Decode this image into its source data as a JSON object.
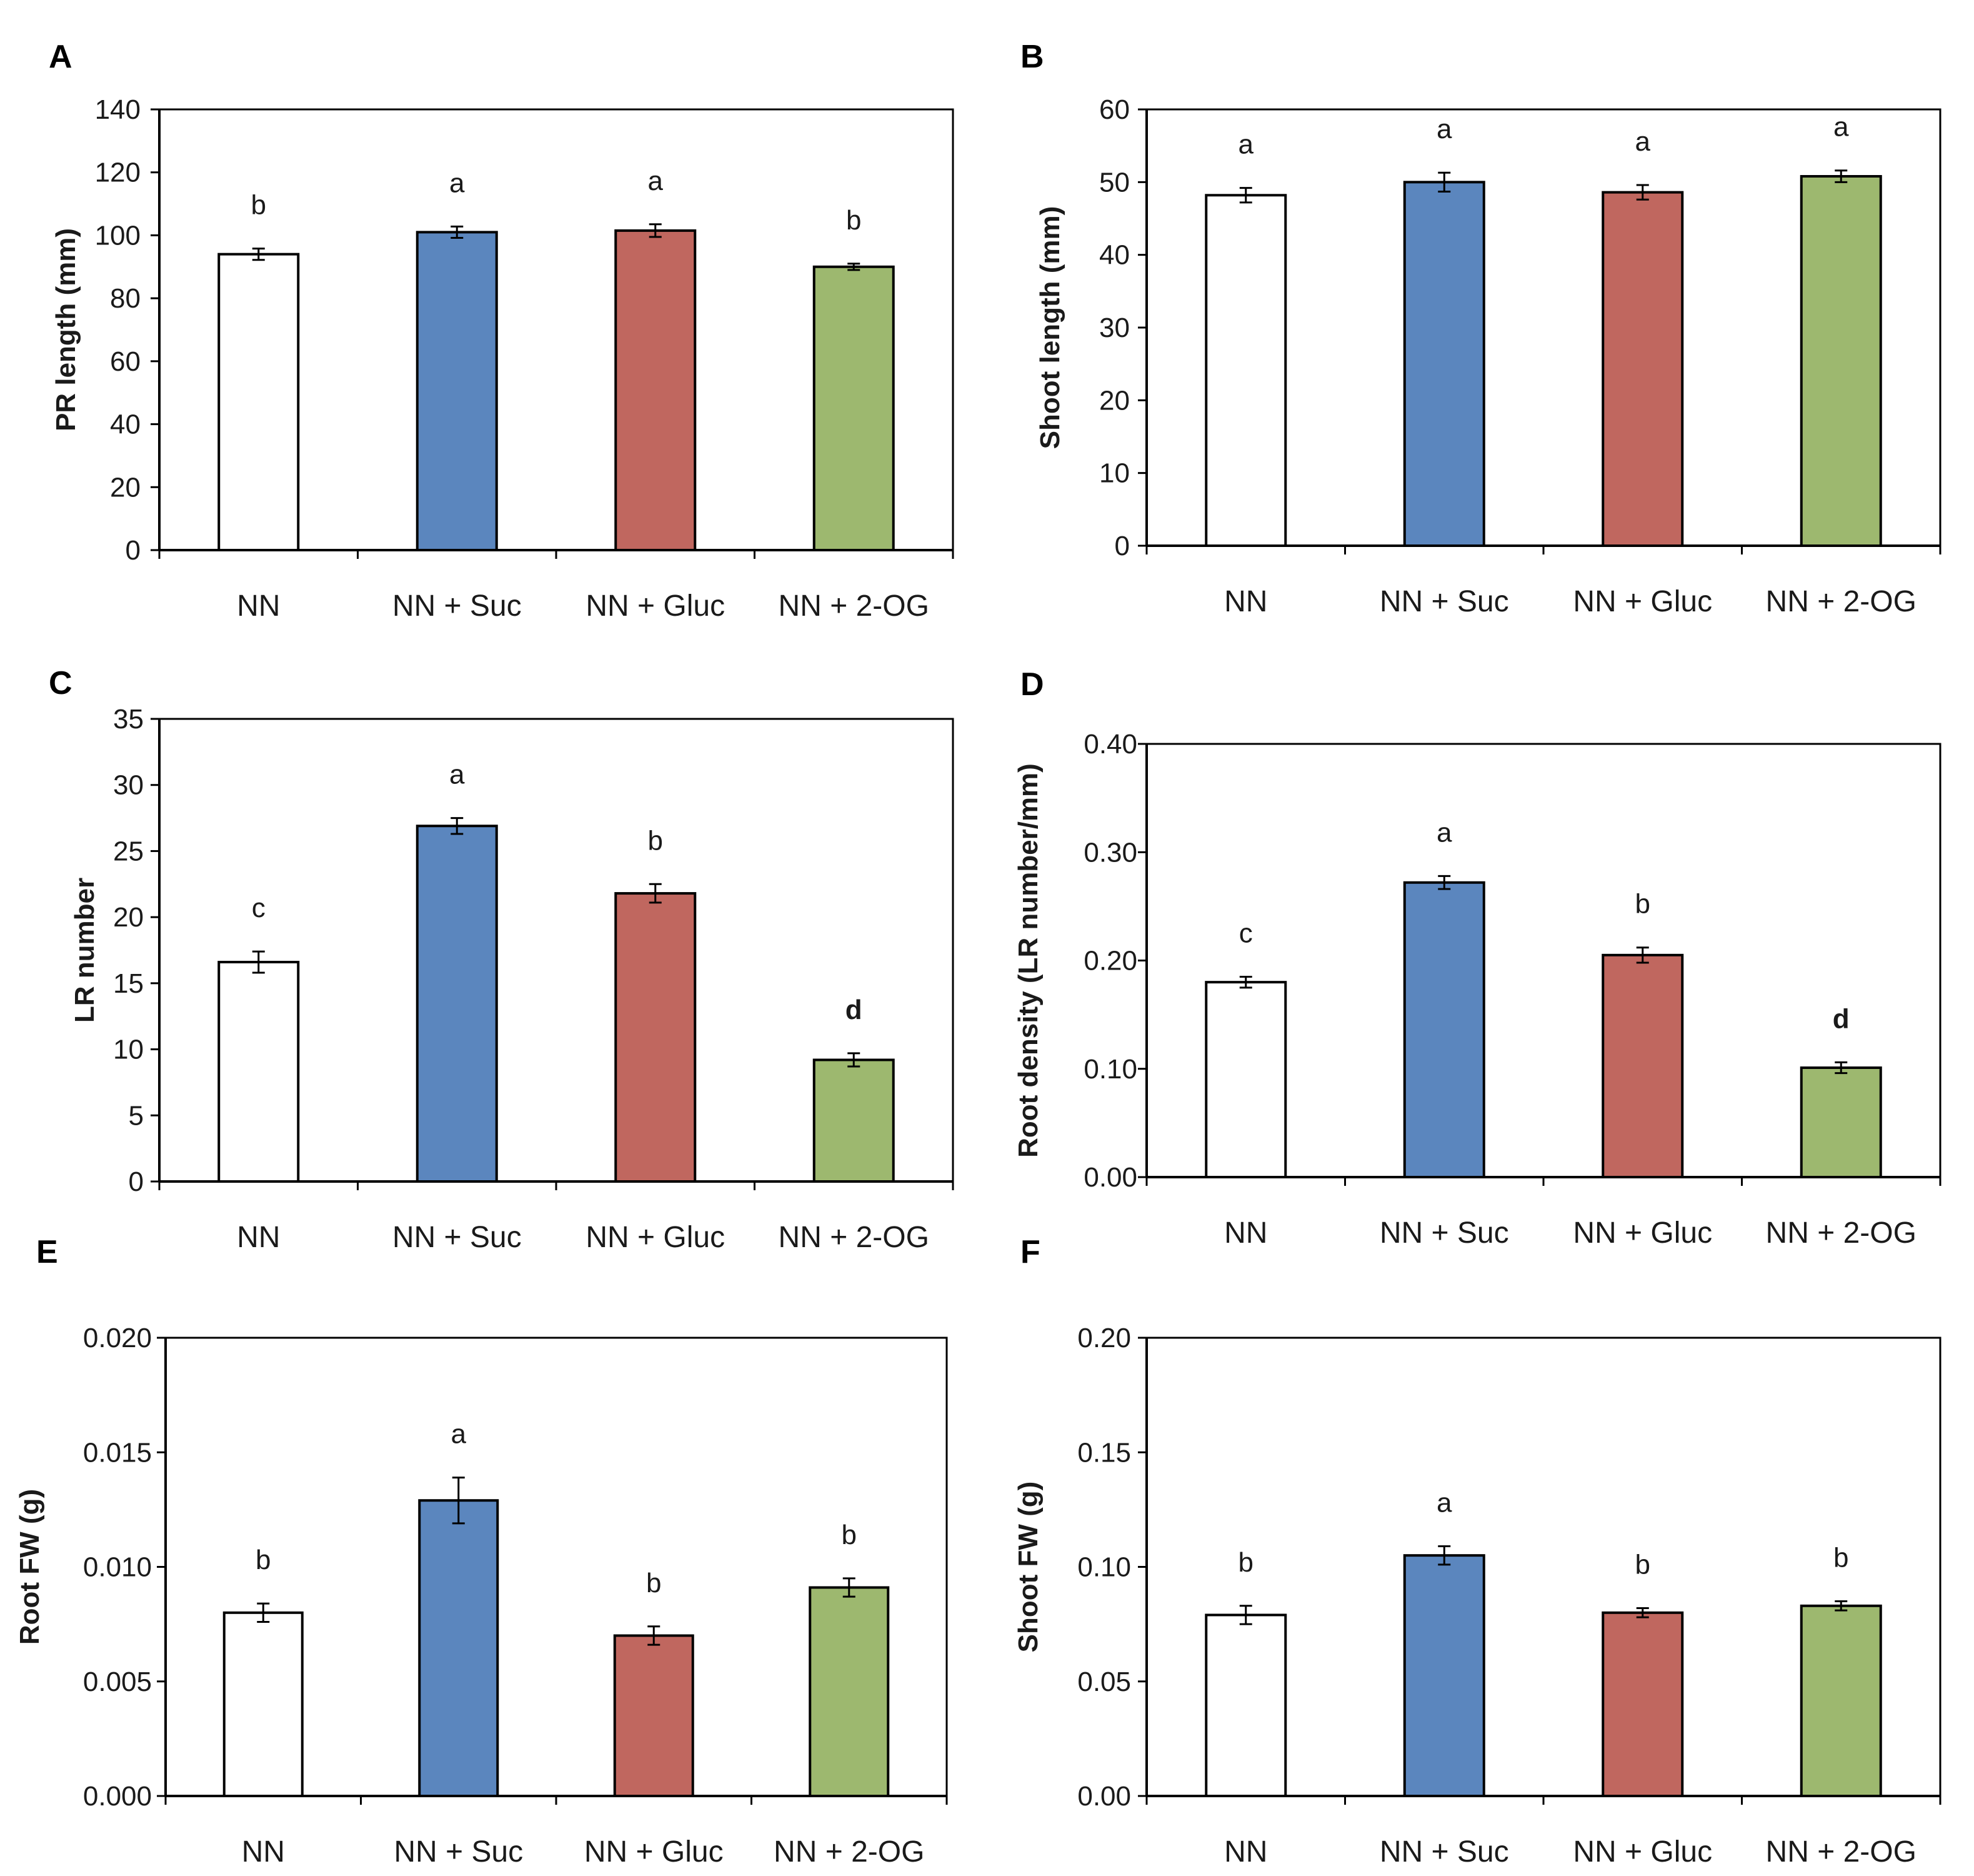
{
  "colors": {
    "NN": "#ffffff",
    "NN + Suc": "#5b86be",
    "NN + Gluc": "#c0675f",
    "NN + 2-OG": "#9db86f"
  },
  "chart_data": [
    {
      "panel": "A",
      "type": "bar",
      "categories": [
        "NN",
        "NN + Suc",
        "NN + Gluc",
        "NN + 2-OG"
      ],
      "values": [
        94,
        101,
        101.5,
        90
      ],
      "errors": [
        1.8,
        1.8,
        2.0,
        1.0
      ],
      "significance": [
        "b",
        "a",
        "a",
        "b"
      ],
      "ylabel": "PR length (mm)",
      "ylim": [
        0,
        140
      ],
      "yticks": [
        0,
        20,
        40,
        60,
        80,
        100,
        120,
        140
      ],
      "ytick_labels": [
        "0",
        "20",
        "40",
        "60",
        "80",
        "100",
        "120",
        "140"
      ]
    },
    {
      "panel": "B",
      "type": "bar",
      "categories": [
        "NN",
        "NN + Suc",
        "NN + Gluc",
        "NN + 2-OG"
      ],
      "values": [
        48.2,
        50,
        48.6,
        50.8
      ],
      "errors": [
        1.0,
        1.3,
        1.0,
        0.8
      ],
      "significance": [
        "a",
        "a",
        "a",
        "a"
      ],
      "ylabel": "Shoot length (mm)",
      "ylim": [
        0,
        60
      ],
      "yticks": [
        0,
        10,
        20,
        30,
        40,
        50,
        60
      ],
      "ytick_labels": [
        "0",
        "10",
        "20",
        "30",
        "40",
        "50",
        "60"
      ]
    },
    {
      "panel": "C",
      "type": "bar",
      "categories": [
        "NN",
        "NN + Suc",
        "NN + Gluc",
        "NN + 2-OG"
      ],
      "values": [
        16.6,
        26.9,
        21.8,
        9.2
      ],
      "errors": [
        0.8,
        0.6,
        0.7,
        0.5
      ],
      "significance": [
        "c",
        "a",
        "b",
        "d"
      ],
      "ylabel": "LR number",
      "ylim": [
        0,
        35
      ],
      "yticks": [
        0,
        5,
        10,
        15,
        20,
        25,
        30,
        35
      ],
      "ytick_labels": [
        "0",
        "5",
        "10",
        "15",
        "20",
        "25",
        "30",
        "35"
      ]
    },
    {
      "panel": "D",
      "type": "bar",
      "categories": [
        "NN",
        "NN + Suc",
        "NN + Gluc",
        "NN + 2-OG"
      ],
      "values": [
        0.18,
        0.272,
        0.205,
        0.101
      ],
      "errors": [
        0.005,
        0.006,
        0.007,
        0.005
      ],
      "significance": [
        "c",
        "a",
        "b",
        "d"
      ],
      "ylabel": "Root density (LR number/mm)",
      "ylim": [
        0,
        0.4
      ],
      "yticks": [
        0,
        0.1,
        0.2,
        0.3,
        0.4
      ],
      "ytick_labels": [
        "0.00",
        "0.10",
        "0.20",
        "0.30",
        "0.40"
      ]
    },
    {
      "panel": "E",
      "type": "bar",
      "categories": [
        "NN",
        "NN + Suc",
        "NN + Gluc",
        "NN + 2-OG"
      ],
      "values": [
        0.008,
        0.0129,
        0.007,
        0.0091
      ],
      "errors": [
        0.0004,
        0.001,
        0.0004,
        0.0004
      ],
      "significance": [
        "b",
        "a",
        "b",
        "b"
      ],
      "ylabel": "Root FW (g)",
      "ylim": [
        0,
        0.02
      ],
      "yticks": [
        0,
        0.005,
        0.01,
        0.015,
        0.02
      ],
      "ytick_labels": [
        "0.000",
        "0.005",
        "0.010",
        "0.015",
        "0.020"
      ]
    },
    {
      "panel": "F",
      "type": "bar",
      "categories": [
        "NN",
        "NN + Suc",
        "NN + Gluc",
        "NN + 2-OG"
      ],
      "values": [
        0.079,
        0.105,
        0.08,
        0.083
      ],
      "errors": [
        0.004,
        0.004,
        0.002,
        0.002
      ],
      "significance": [
        "b",
        "a",
        "b",
        "b"
      ],
      "ylabel": "Shoot FW (g)",
      "ylim": [
        0,
        0.2
      ],
      "yticks": [
        0,
        0.05,
        0.1,
        0.15,
        0.2
      ],
      "ytick_labels": [
        "0.00",
        "0.05",
        "0.10",
        "0.15",
        "0.20"
      ]
    }
  ]
}
